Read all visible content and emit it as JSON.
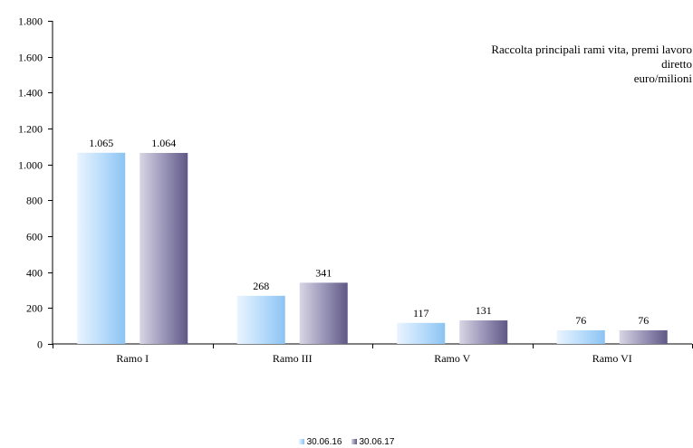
{
  "chart_data": {
    "type": "bar",
    "annotation": [
      "Raccolta principali rami vita, premi lavoro",
      "diretto",
      "euro/milioni"
    ],
    "categories": [
      "Ramo I",
      "Ramo III",
      "Ramo V",
      "Ramo VI"
    ],
    "series": [
      {
        "name": "30.06.16",
        "values": [
          1065,
          268,
          117,
          76
        ],
        "data_labels": [
          "1.065",
          "268",
          "117",
          "76"
        ],
        "color": "#a9d2f8"
      },
      {
        "name": "30.06.17",
        "values": [
          1064,
          341,
          131,
          76
        ],
        "data_labels": [
          "1.064",
          "341",
          "131",
          "76"
        ],
        "color": "#8c85ad"
      }
    ],
    "ylim": [
      0,
      1800
    ],
    "yticks": [
      0,
      200,
      400,
      600,
      800,
      1000,
      1200,
      1400,
      1600,
      1800
    ],
    "ytick_labels": [
      "0",
      "200",
      "400",
      "600",
      "800",
      "1.000",
      "1.200",
      "1.400",
      "1.600",
      "1.800"
    ],
    "grid": false,
    "legend_position": "bottom"
  }
}
